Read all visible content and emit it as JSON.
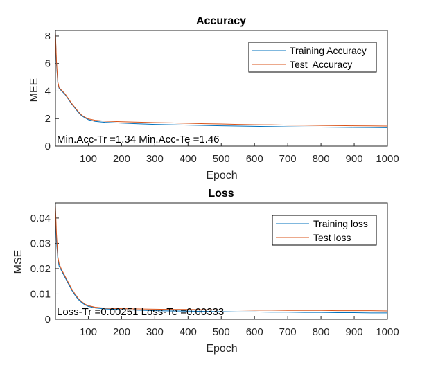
{
  "colors": {
    "training": "#0072BD",
    "test": "#D95319",
    "axis": "#262626",
    "legend_border": "#000000"
  },
  "chart_data": [
    {
      "id": "accuracy",
      "type": "line",
      "title": "Accuracy",
      "xlabel": "Epoch",
      "ylabel": "MEE",
      "xlim": [
        1,
        1000
      ],
      "ylim": [
        0,
        8.4
      ],
      "xticks": [
        100,
        200,
        300,
        400,
        500,
        600,
        700,
        800,
        900,
        1000
      ],
      "xtick_labels": [
        "100",
        "200",
        "300",
        "400",
        "500",
        "600",
        "700",
        "800",
        "900",
        "1000"
      ],
      "yticks": [
        0,
        2,
        4,
        6,
        8
      ],
      "ytick_labels": [
        "0",
        "2",
        "4",
        "6",
        "8"
      ],
      "legend_placement": "top-right",
      "annotation": "Min.Acc-Tr =1.34 Min.Acc-Te =1.46",
      "series": [
        {
          "name": "Training Accuracy",
          "color": "#0072BD",
          "points": [
            [
              1,
              8.2
            ],
            [
              4,
              6.0
            ],
            [
              8,
              4.6
            ],
            [
              12,
              4.2
            ],
            [
              20,
              4.0
            ],
            [
              30,
              3.75
            ],
            [
              40,
              3.4
            ],
            [
              50,
              3.05
            ],
            [
              60,
              2.75
            ],
            [
              70,
              2.45
            ],
            [
              80,
              2.2
            ],
            [
              90,
              2.05
            ],
            [
              100,
              1.92
            ],
            [
              120,
              1.8
            ],
            [
              150,
              1.73
            ],
            [
              200,
              1.67
            ],
            [
              250,
              1.62
            ],
            [
              300,
              1.58
            ],
            [
              350,
              1.55
            ],
            [
              400,
              1.53
            ],
            [
              450,
              1.5
            ],
            [
              500,
              1.48
            ],
            [
              550,
              1.46
            ],
            [
              600,
              1.44
            ],
            [
              650,
              1.42
            ],
            [
              700,
              1.4
            ],
            [
              750,
              1.39
            ],
            [
              800,
              1.38
            ],
            [
              850,
              1.37
            ],
            [
              900,
              1.36
            ],
            [
              950,
              1.35
            ],
            [
              1000,
              1.34
            ]
          ]
        },
        {
          "name": "Test  Accuracy",
          "color": "#D95319",
          "points": [
            [
              1,
              8.3
            ],
            [
              4,
              6.2
            ],
            [
              8,
              4.7
            ],
            [
              12,
              4.25
            ],
            [
              20,
              4.05
            ],
            [
              30,
              3.8
            ],
            [
              40,
              3.45
            ],
            [
              50,
              3.1
            ],
            [
              60,
              2.8
            ],
            [
              70,
              2.5
            ],
            [
              80,
              2.25
            ],
            [
              90,
              2.1
            ],
            [
              100,
              1.98
            ],
            [
              120,
              1.88
            ],
            [
              150,
              1.82
            ],
            [
              200,
              1.77
            ],
            [
              250,
              1.74
            ],
            [
              300,
              1.71
            ],
            [
              350,
              1.69
            ],
            [
              400,
              1.66
            ],
            [
              450,
              1.63
            ],
            [
              500,
              1.61
            ],
            [
              550,
              1.58
            ],
            [
              600,
              1.56
            ],
            [
              650,
              1.55
            ],
            [
              700,
              1.53
            ],
            [
              750,
              1.52
            ],
            [
              800,
              1.5
            ],
            [
              850,
              1.49
            ],
            [
              900,
              1.48
            ],
            [
              950,
              1.47
            ],
            [
              1000,
              1.46
            ]
          ]
        }
      ]
    },
    {
      "id": "loss",
      "type": "line",
      "title": "Loss",
      "xlabel": "Epoch",
      "ylabel": "MSE",
      "xlim": [
        1,
        1000
      ],
      "ylim": [
        0,
        0.046
      ],
      "xticks": [
        100,
        200,
        300,
        400,
        500,
        600,
        700,
        800,
        900,
        1000
      ],
      "xtick_labels": [
        "100",
        "200",
        "300",
        "400",
        "500",
        "600",
        "700",
        "800",
        "900",
        "1000"
      ],
      "yticks": [
        0,
        0.01,
        0.02,
        0.03,
        0.04
      ],
      "ytick_labels": [
        "0",
        "0.01",
        "0.02",
        "0.03",
        "0.04"
      ],
      "legend_placement": "top-right",
      "annotation": "Loss-Tr =0.00251 Loss-Te =0.00333",
      "series": [
        {
          "name": "Training loss",
          "color": "#0072BD",
          "points": [
            [
              1,
              0.043
            ],
            [
              4,
              0.031
            ],
            [
              8,
              0.024
            ],
            [
              12,
              0.021
            ],
            [
              20,
              0.019
            ],
            [
              30,
              0.0165
            ],
            [
              40,
              0.014
            ],
            [
              50,
              0.0115
            ],
            [
              60,
              0.0095
            ],
            [
              70,
              0.0078
            ],
            [
              80,
              0.0066
            ],
            [
              90,
              0.0057
            ],
            [
              100,
              0.0051
            ],
            [
              120,
              0.0045
            ],
            [
              150,
              0.0041
            ],
            [
              200,
              0.0038
            ],
            [
              250,
              0.0036
            ],
            [
              300,
              0.0034
            ],
            [
              350,
              0.0033
            ],
            [
              400,
              0.0032
            ],
            [
              450,
              0.0031
            ],
            [
              500,
              0.003
            ],
            [
              550,
              0.0029
            ],
            [
              600,
              0.0029
            ],
            [
              650,
              0.0028
            ],
            [
              700,
              0.0028
            ],
            [
              750,
              0.0027
            ],
            [
              800,
              0.0027
            ],
            [
              850,
              0.0026
            ],
            [
              900,
              0.0026
            ],
            [
              950,
              0.0025
            ],
            [
              1000,
              0.0025
            ]
          ]
        },
        {
          "name": "Test loss",
          "color": "#D95319",
          "points": [
            [
              1,
              0.045
            ],
            [
              4,
              0.034
            ],
            [
              8,
              0.025
            ],
            [
              12,
              0.022
            ],
            [
              20,
              0.0195
            ],
            [
              30,
              0.017
            ],
            [
              40,
              0.0145
            ],
            [
              50,
              0.012
            ],
            [
              60,
              0.01
            ],
            [
              70,
              0.0082
            ],
            [
              80,
              0.007
            ],
            [
              90,
              0.006
            ],
            [
              100,
              0.0054
            ],
            [
              120,
              0.0048
            ],
            [
              150,
              0.0044
            ],
            [
              200,
              0.0042
            ],
            [
              250,
              0.0041
            ],
            [
              300,
              0.004
            ],
            [
              350,
              0.0039
            ],
            [
              400,
              0.0039
            ],
            [
              450,
              0.0038
            ],
            [
              500,
              0.0037
            ],
            [
              550,
              0.0037
            ],
            [
              600,
              0.0036
            ],
            [
              650,
              0.0036
            ],
            [
              700,
              0.0035
            ],
            [
              750,
              0.0035
            ],
            [
              800,
              0.0035
            ],
            [
              850,
              0.0034
            ],
            [
              900,
              0.0034
            ],
            [
              950,
              0.0034
            ],
            [
              1000,
              0.0033
            ]
          ]
        }
      ]
    }
  ]
}
